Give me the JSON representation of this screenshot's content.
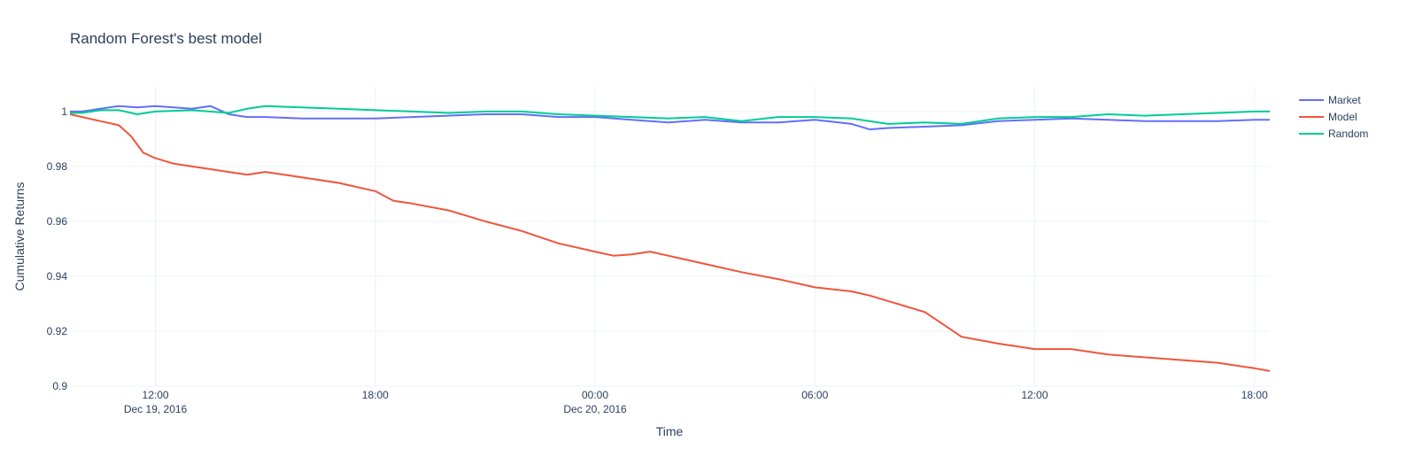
{
  "chart_data": {
    "type": "line",
    "title": "Random Forest's best model",
    "xlabel": "Time",
    "ylabel": "Cumulative Returns",
    "x_range": [
      "2016-12-19T09:40",
      "2016-12-20T18:25"
    ],
    "ylim": [
      0.9,
      1.009
    ],
    "y_ticks": [
      {
        "value": 0.9,
        "label": "0.9"
      },
      {
        "value": 0.92,
        "label": "0.92"
      },
      {
        "value": 0.94,
        "label": "0.94"
      },
      {
        "value": 0.96,
        "label": "0.96"
      },
      {
        "value": 0.98,
        "label": "0.98"
      },
      {
        "value": 1.0,
        "label": "1"
      }
    ],
    "x_ticks": [
      {
        "t": "2016-12-19T12:00",
        "label": "12:00",
        "sublabel": "Dec 19, 2016"
      },
      {
        "t": "2016-12-19T18:00",
        "label": "18:00",
        "sublabel": ""
      },
      {
        "t": "2016-12-20T00:00",
        "label": "00:00",
        "sublabel": "Dec 20, 2016"
      },
      {
        "t": "2016-12-20T06:00",
        "label": "06:00",
        "sublabel": ""
      },
      {
        "t": "2016-12-20T12:00",
        "label": "12:00",
        "sublabel": ""
      },
      {
        "t": "2016-12-20T18:00",
        "label": "18:00",
        "sublabel": ""
      }
    ],
    "grid": true,
    "legend_position": "top-right",
    "series": [
      {
        "name": "Market",
        "color": "#636efa",
        "points": [
          [
            "2016-12-19T09:40",
            1.0
          ],
          [
            "2016-12-19T10:00",
            1.0
          ],
          [
            "2016-12-19T10:30",
            1.001
          ],
          [
            "2016-12-19T11:00",
            1.002
          ],
          [
            "2016-12-19T11:30",
            1.0015
          ],
          [
            "2016-12-19T12:00",
            1.002
          ],
          [
            "2016-12-19T12:30",
            1.0015
          ],
          [
            "2016-12-19T13:00",
            1.001
          ],
          [
            "2016-12-19T13:30",
            1.002
          ],
          [
            "2016-12-19T14:00",
            0.999
          ],
          [
            "2016-12-19T14:30",
            0.998
          ],
          [
            "2016-12-19T15:00",
            0.998
          ],
          [
            "2016-12-19T16:00",
            0.9975
          ],
          [
            "2016-12-19T17:00",
            0.9975
          ],
          [
            "2016-12-19T18:00",
            0.9975
          ],
          [
            "2016-12-19T19:00",
            0.998
          ],
          [
            "2016-12-19T20:00",
            0.9985
          ],
          [
            "2016-12-19T21:00",
            0.999
          ],
          [
            "2016-12-19T22:00",
            0.999
          ],
          [
            "2016-12-19T23:00",
            0.998
          ],
          [
            "2016-12-20T00:00",
            0.998
          ],
          [
            "2016-12-20T01:00",
            0.997
          ],
          [
            "2016-12-20T02:00",
            0.996
          ],
          [
            "2016-12-20T03:00",
            0.997
          ],
          [
            "2016-12-20T04:00",
            0.996
          ],
          [
            "2016-12-20T05:00",
            0.996
          ],
          [
            "2016-12-20T06:00",
            0.997
          ],
          [
            "2016-12-20T07:00",
            0.9955
          ],
          [
            "2016-12-20T07:30",
            0.9935
          ],
          [
            "2016-12-20T08:00",
            0.994
          ],
          [
            "2016-12-20T09:00",
            0.9945
          ],
          [
            "2016-12-20T10:00",
            0.995
          ],
          [
            "2016-12-20T11:00",
            0.9965
          ],
          [
            "2016-12-20T12:00",
            0.997
          ],
          [
            "2016-12-20T13:00",
            0.9975
          ],
          [
            "2016-12-20T14:00",
            0.997
          ],
          [
            "2016-12-20T15:00",
            0.9965
          ],
          [
            "2016-12-20T16:00",
            0.9965
          ],
          [
            "2016-12-20T17:00",
            0.9965
          ],
          [
            "2016-12-20T18:00",
            0.997
          ],
          [
            "2016-12-20T18:25",
            0.997
          ]
        ]
      },
      {
        "name": "Model",
        "color": "#ef553b",
        "points": [
          [
            "2016-12-19T09:40",
            0.999
          ],
          [
            "2016-12-19T10:00",
            0.998
          ],
          [
            "2016-12-19T10:30",
            0.9965
          ],
          [
            "2016-12-19T11:00",
            0.995
          ],
          [
            "2016-12-19T11:20",
            0.991
          ],
          [
            "2016-12-19T11:40",
            0.985
          ],
          [
            "2016-12-19T12:00",
            0.983
          ],
          [
            "2016-12-19T12:30",
            0.981
          ],
          [
            "2016-12-19T13:00",
            0.98
          ],
          [
            "2016-12-19T13:30",
            0.979
          ],
          [
            "2016-12-19T14:00",
            0.978
          ],
          [
            "2016-12-19T14:30",
            0.977
          ],
          [
            "2016-12-19T15:00",
            0.978
          ],
          [
            "2016-12-19T16:00",
            0.976
          ],
          [
            "2016-12-19T17:00",
            0.974
          ],
          [
            "2016-12-19T18:00",
            0.971
          ],
          [
            "2016-12-19T18:30",
            0.9675
          ],
          [
            "2016-12-19T19:00",
            0.9665
          ],
          [
            "2016-12-19T20:00",
            0.964
          ],
          [
            "2016-12-19T21:00",
            0.96
          ],
          [
            "2016-12-19T22:00",
            0.9565
          ],
          [
            "2016-12-19T23:00",
            0.952
          ],
          [
            "2016-12-20T00:00",
            0.949
          ],
          [
            "2016-12-20T00:30",
            0.9475
          ],
          [
            "2016-12-20T01:00",
            0.948
          ],
          [
            "2016-12-20T01:30",
            0.949
          ],
          [
            "2016-12-20T02:00",
            0.9475
          ],
          [
            "2016-12-20T03:00",
            0.9445
          ],
          [
            "2016-12-20T04:00",
            0.9415
          ],
          [
            "2016-12-20T05:00",
            0.939
          ],
          [
            "2016-12-20T06:00",
            0.936
          ],
          [
            "2016-12-20T07:00",
            0.9345
          ],
          [
            "2016-12-20T07:30",
            0.933
          ],
          [
            "2016-12-20T08:00",
            0.931
          ],
          [
            "2016-12-20T09:00",
            0.927
          ],
          [
            "2016-12-20T09:30",
            0.9225
          ],
          [
            "2016-12-20T10:00",
            0.918
          ],
          [
            "2016-12-20T11:00",
            0.9155
          ],
          [
            "2016-12-20T12:00",
            0.9135
          ],
          [
            "2016-12-20T13:00",
            0.9135
          ],
          [
            "2016-12-20T14:00",
            0.9115
          ],
          [
            "2016-12-20T15:00",
            0.9105
          ],
          [
            "2016-12-20T16:00",
            0.9095
          ],
          [
            "2016-12-20T17:00",
            0.9085
          ],
          [
            "2016-12-20T18:00",
            0.9065
          ],
          [
            "2016-12-20T18:25",
            0.9055
          ]
        ]
      },
      {
        "name": "Random",
        "color": "#00cc96",
        "points": [
          [
            "2016-12-19T09:40",
            0.9995
          ],
          [
            "2016-12-19T10:00",
            0.9995
          ],
          [
            "2016-12-19T10:30",
            1.0005
          ],
          [
            "2016-12-19T11:00",
            1.0005
          ],
          [
            "2016-12-19T11:30",
            0.999
          ],
          [
            "2016-12-19T12:00",
            1.0
          ],
          [
            "2016-12-19T13:00",
            1.0005
          ],
          [
            "2016-12-19T14:00",
            0.9995
          ],
          [
            "2016-12-19T14:30",
            1.001
          ],
          [
            "2016-12-19T15:00",
            1.002
          ],
          [
            "2016-12-19T16:00",
            1.0015
          ],
          [
            "2016-12-19T17:00",
            1.001
          ],
          [
            "2016-12-19T18:00",
            1.0005
          ],
          [
            "2016-12-19T19:00",
            1.0
          ],
          [
            "2016-12-19T20:00",
            0.9995
          ],
          [
            "2016-12-19T21:00",
            1.0
          ],
          [
            "2016-12-19T22:00",
            1.0
          ],
          [
            "2016-12-19T23:00",
            0.999
          ],
          [
            "2016-12-20T00:00",
            0.9985
          ],
          [
            "2016-12-20T01:00",
            0.998
          ],
          [
            "2016-12-20T02:00",
            0.9975
          ],
          [
            "2016-12-20T03:00",
            0.998
          ],
          [
            "2016-12-20T04:00",
            0.9965
          ],
          [
            "2016-12-20T05:00",
            0.998
          ],
          [
            "2016-12-20T06:00",
            0.998
          ],
          [
            "2016-12-20T07:00",
            0.9975
          ],
          [
            "2016-12-20T08:00",
            0.9955
          ],
          [
            "2016-12-20T09:00",
            0.996
          ],
          [
            "2016-12-20T10:00",
            0.9955
          ],
          [
            "2016-12-20T11:00",
            0.9975
          ],
          [
            "2016-12-20T12:00",
            0.998
          ],
          [
            "2016-12-20T13:00",
            0.998
          ],
          [
            "2016-12-20T14:00",
            0.999
          ],
          [
            "2016-12-20T15:00",
            0.9985
          ],
          [
            "2016-12-20T16:00",
            0.999
          ],
          [
            "2016-12-20T17:00",
            0.9995
          ],
          [
            "2016-12-20T18:00",
            1.0
          ],
          [
            "2016-12-20T18:25",
            1.0
          ]
        ]
      }
    ]
  }
}
